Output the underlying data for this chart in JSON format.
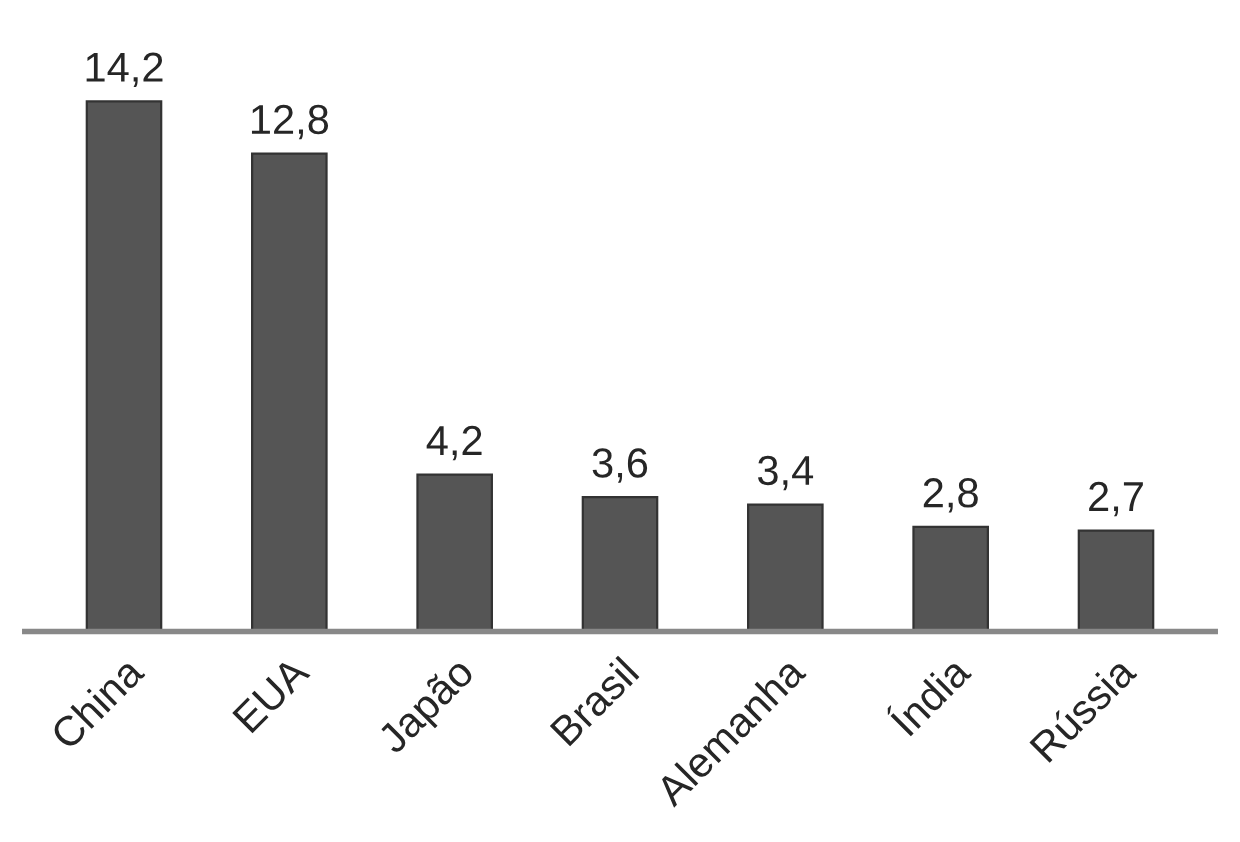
{
  "chart_data": {
    "type": "bar",
    "categories": [
      "China",
      "EUA",
      "Japão",
      "Brasil",
      "Alemanha",
      "Índia",
      "Rússia"
    ],
    "values": [
      14.2,
      12.8,
      4.2,
      3.6,
      3.4,
      2.8,
      2.7
    ],
    "value_labels": [
      "14,2",
      "12,8",
      "4,2",
      "3,6",
      "3,4",
      "2,8",
      "2,7"
    ],
    "color": "#555555",
    "grid": false,
    "legend": false
  }
}
